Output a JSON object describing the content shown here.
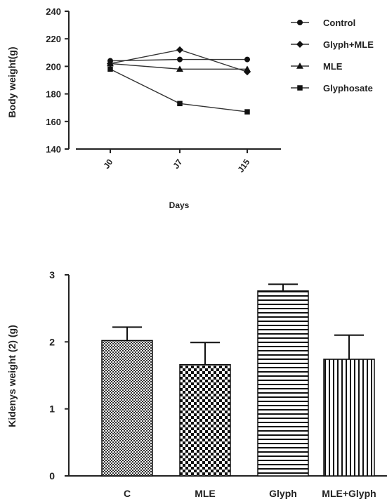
{
  "chart_data": [
    {
      "type": "line",
      "title": "",
      "xlabel": "Days",
      "ylabel": "Body weight(g)",
      "categories": [
        "J0",
        "J7",
        "J15"
      ],
      "ylim": [
        140,
        240
      ],
      "yticks": [
        140,
        160,
        180,
        200,
        220,
        240
      ],
      "grid": false,
      "legend_position": "right",
      "series": [
        {
          "name": "Control",
          "marker": "circle",
          "values": [
            204,
            205,
            205
          ]
        },
        {
          "name": "Glyph+MLE",
          "marker": "diamond",
          "values": [
            202,
            212,
            196
          ]
        },
        {
          "name": "MLE",
          "marker": "triangle",
          "values": [
            202,
            198,
            198
          ]
        },
        {
          "name": "Glyphosate",
          "marker": "square",
          "values": [
            198,
            173,
            167
          ]
        }
      ]
    },
    {
      "type": "bar",
      "title": "",
      "xlabel": "",
      "ylabel": "Kidenys weight (2) (g)",
      "categories": [
        "C",
        "MLE",
        "Glyph",
        "MLE+Glyph"
      ],
      "values": [
        2.02,
        1.66,
        2.76,
        1.74
      ],
      "error": [
        0.2,
        0.33,
        0.1,
        0.36
      ],
      "patterns": [
        "crosshatch",
        "checker",
        "horizontal-stripes",
        "vertical-stripes"
      ],
      "ylim": [
        0,
        3
      ],
      "yticks": [
        0,
        1,
        2,
        3
      ],
      "grid": false
    }
  ]
}
